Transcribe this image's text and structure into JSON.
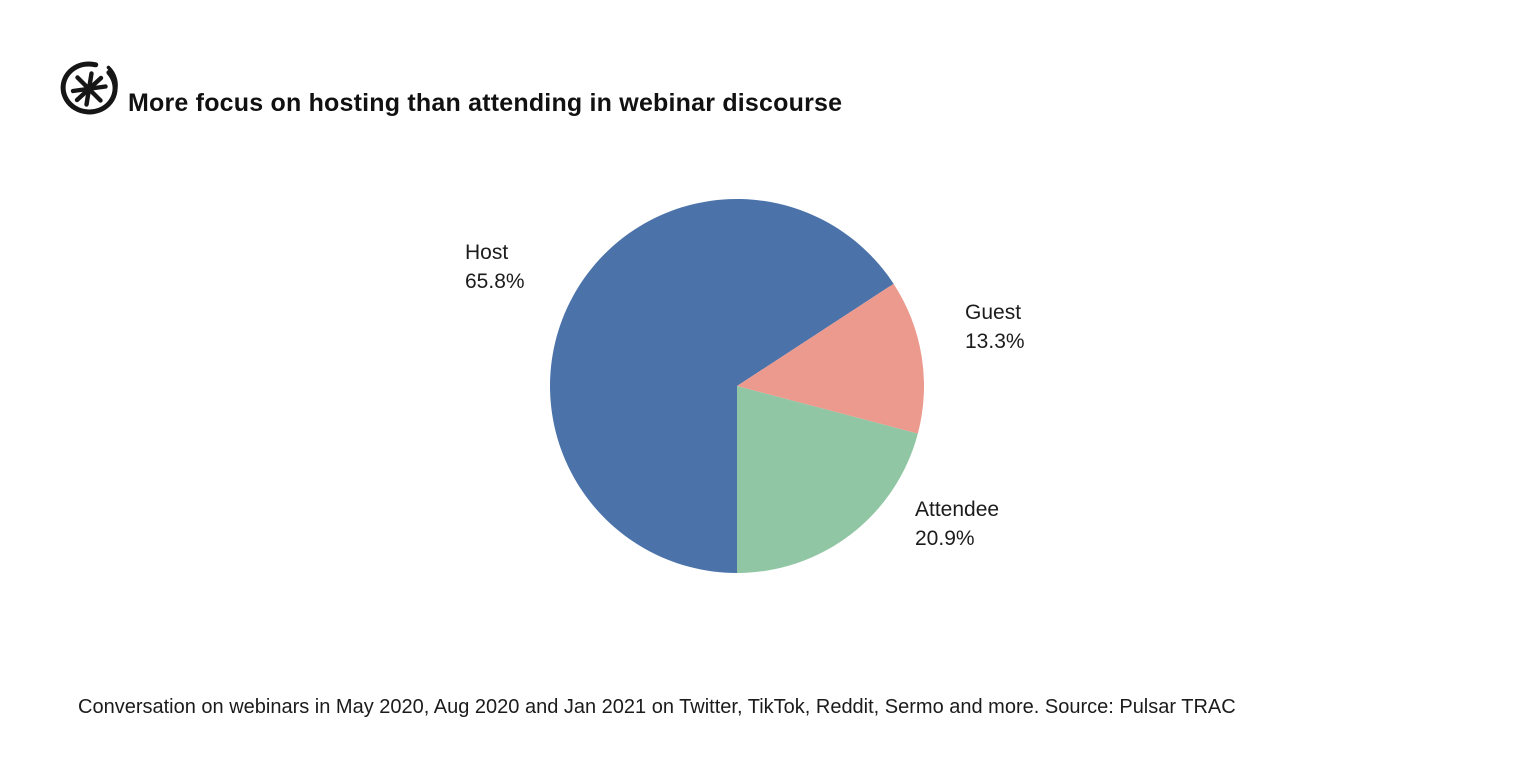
{
  "page": {
    "background": "#ffffff"
  },
  "header": {
    "logo_icon": "pulsar-asterisk-logo",
    "title": "More focus on hosting than attending in webinar discourse"
  },
  "chart_data": {
    "type": "pie",
    "title": "More focus on hosting than attending in webinar discourse",
    "start_angle_deg": 180,
    "direction": "clockwise",
    "legend_position": "outside-labels",
    "slices": [
      {
        "label": "Host",
        "value": 65.8,
        "value_label": "65.8%",
        "color": "#4b73a9"
      },
      {
        "label": "Guest",
        "value": 13.3,
        "value_label": "13.3%",
        "color": "#ec9a8e"
      },
      {
        "label": "Attendee",
        "value": 20.9,
        "value_label": "20.9%",
        "color": "#90c6a3"
      }
    ]
  },
  "footer": {
    "caption": "Conversation on webinars in May 2020, Aug 2020 and Jan 2021 on Twitter, TikTok, Reddit, Sermo and more. Source: Pulsar TRAC"
  }
}
